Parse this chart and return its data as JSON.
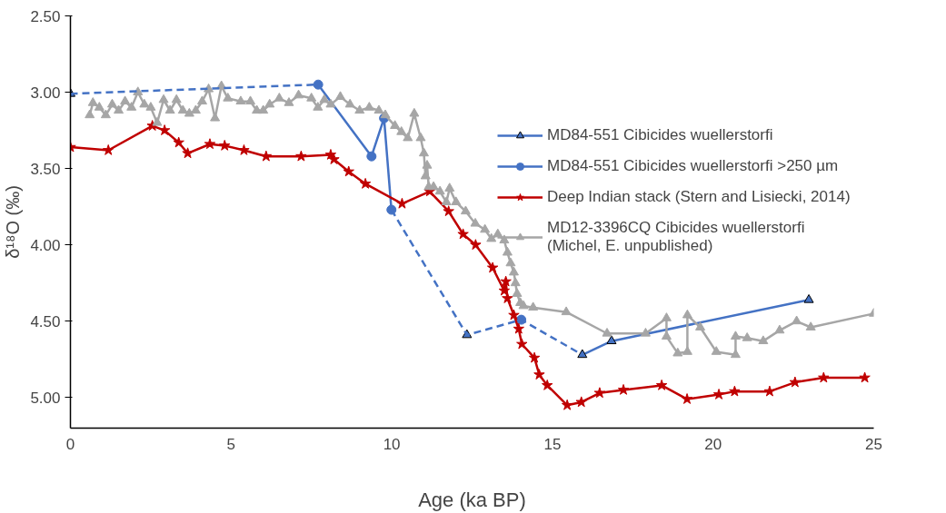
{
  "chart_data": {
    "type": "line",
    "xlabel": "Age (ka BP)",
    "ylabel": "δ¹⁸O (‰)",
    "xlim": [
      0,
      25
    ],
    "xticks": [
      0,
      5,
      10,
      15,
      20,
      25
    ],
    "ylim": [
      5.2,
      2.5
    ],
    "yticks": [
      {
        "value": 2.5,
        "label": "2.50"
      },
      {
        "value": 3.0,
        "label": "3.00"
      },
      {
        "value": 3.5,
        "label": "3.50"
      },
      {
        "value": 4.0,
        "label": "4.00"
      },
      {
        "value": 4.5,
        "label": "4.50"
      },
      {
        "value": 5.0,
        "label": "5.00"
      }
    ],
    "grid": false,
    "legend": "top right",
    "series": [
      {
        "name": "MD84-551 Cibicides wuellerstorfi",
        "color": "#4472c4",
        "marker": "triangle",
        "line_style": "solid",
        "x": [
          0,
          6,
          12.34,
          14,
          15.93,
          16.84,
          22.98
        ],
        "values": [
          3.01,
          null,
          4.59,
          null,
          4.72,
          4.63,
          4.36
        ]
      },
      {
        "name": "MD84-551 Cibicides wuellerstorfi >250 µm",
        "color": "#4472c4",
        "marker": "circle",
        "line_style": "solid",
        "x": [
          7.71,
          9.37,
          9.76,
          9.99,
          12,
          14.03
        ],
        "values": [
          2.95,
          3.42,
          3.17,
          3.77,
          null,
          4.49
        ]
      },
      {
        "name": "Deep Indian stack (Stern and Lisiecki, 2014)",
        "color": "#c00000",
        "marker": "star",
        "line_style": "solid",
        "x": [
          0,
          1.18,
          2.55,
          2.93,
          3.37,
          3.65,
          4.34,
          4.8,
          5.4,
          6.09,
          7.18,
          8.1,
          8.2,
          8.66,
          9.18,
          10.32,
          11.18,
          11.77,
          12.22,
          12.61,
          13.14,
          13.5,
          13.55,
          13.6,
          13.8,
          13.95,
          14.05,
          14.44,
          14.59,
          14.84,
          15.46,
          15.9,
          16.47,
          17.21,
          18.4,
          19.19,
          20.18,
          20.67,
          21.76,
          22.55,
          23.44,
          24.72
        ],
        "values": [
          3.36,
          3.38,
          3.22,
          3.25,
          3.33,
          3.4,
          3.34,
          3.35,
          3.38,
          3.42,
          3.42,
          3.41,
          3.44,
          3.52,
          3.6,
          3.73,
          3.65,
          3.78,
          3.93,
          4.0,
          4.15,
          4.3,
          4.24,
          4.35,
          4.46,
          4.55,
          4.65,
          4.74,
          4.85,
          4.92,
          5.05,
          5.03,
          4.97,
          4.95,
          4.92,
          5.01,
          4.98,
          4.96,
          4.96,
          4.9,
          4.87,
          4.87
        ]
      },
      {
        "name": "MD12-3396CQ Cibicides wuellerstorfi\n(Michel, E. unpublished)",
        "color": "#a6a6a6",
        "marker": "triangle",
        "line_style": "solid",
        "x": [
          0.6,
          0.7,
          0.9,
          1.1,
          1.3,
          1.5,
          1.7,
          1.9,
          2.1,
          2.3,
          2.5,
          2.7,
          2.9,
          3.1,
          3.3,
          3.5,
          3.7,
          3.9,
          4.1,
          4.3,
          4.5,
          4.7,
          4.9,
          5.3,
          5.6,
          5.8,
          6.0,
          6.2,
          6.5,
          6.8,
          7.1,
          7.5,
          7.7,
          7.9,
          8.1,
          8.4,
          8.7,
          9.0,
          9.3,
          9.6,
          9.8,
          10.1,
          10.3,
          10.5,
          10.7,
          10.9,
          11.0,
          11.05,
          11.1,
          11.15,
          11.3,
          11.5,
          11.7,
          11.8,
          12.0,
          12.3,
          12.6,
          12.9,
          13.1,
          13.3,
          13.5,
          13.6,
          13.7,
          13.8,
          13.85,
          13.9,
          14.0,
          14.1,
          14.4,
          15.43,
          16.7,
          17.9,
          18.55,
          18.55,
          18.9,
          19.2,
          19.2,
          19.6,
          20.1,
          20.7,
          20.7,
          21.06,
          21.56,
          22.07,
          22.6,
          23.04,
          25.0
        ],
        "values": [
          3.15,
          3.07,
          3.1,
          3.15,
          3.08,
          3.12,
          3.06,
          3.1,
          3.0,
          3.08,
          3.1,
          3.2,
          3.05,
          3.12,
          3.05,
          3.12,
          3.14,
          3.12,
          3.06,
          2.98,
          3.17,
          2.96,
          3.04,
          3.06,
          3.06,
          3.12,
          3.12,
          3.08,
          3.04,
          3.07,
          3.02,
          3.04,
          3.1,
          3.05,
          3.08,
          3.03,
          3.08,
          3.12,
          3.1,
          3.12,
          3.15,
          3.22,
          3.26,
          3.3,
          3.14,
          3.3,
          3.4,
          3.55,
          3.48,
          3.62,
          3.62,
          3.65,
          3.72,
          3.63,
          3.72,
          3.78,
          3.86,
          3.9,
          3.96,
          3.93,
          3.97,
          4.05,
          4.12,
          4.18,
          4.25,
          4.32,
          4.38,
          4.4,
          4.41,
          4.44,
          4.58,
          4.58,
          4.48,
          4.6,
          4.71,
          4.7,
          4.46,
          4.54,
          4.7,
          4.72,
          4.6,
          4.61,
          4.63,
          4.56,
          4.5,
          4.54,
          4.45
        ]
      },
      {
        "color": "#4472c4",
        "marker": "none",
        "line_style": "dashed",
        "x": [
          0,
          7.71,
          8.8,
          9.99,
          12.34,
          14.03,
          15.93
        ],
        "values": [
          3.01,
          2.95,
          null,
          3.77,
          4.59,
          4.49,
          4.72
        ]
      }
    ]
  }
}
